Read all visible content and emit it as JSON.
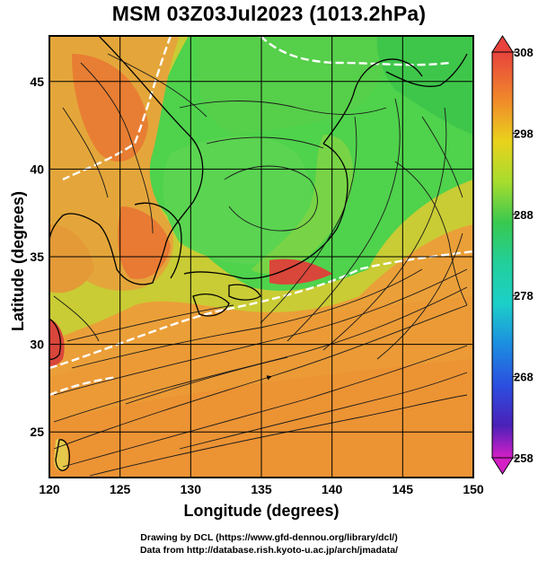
{
  "title": "MSM 03Z03Jul2023 (1013.2hPa)",
  "xlabel": "Longitude (degrees)",
  "ylabel": "Latitude  (degrees)",
  "credits": {
    "line1": "Drawing by DCL (https://www.gfd-dennou.org/library/dcl/)",
    "line2": "Data from http://database.rish.kyoto-u.ac.jp/arch/jmadata/"
  },
  "map": {
    "lon_range": [
      120,
      150
    ],
    "lat_range": [
      22.4,
      47.6
    ],
    "x_ticks": [
      120,
      125,
      130,
      135,
      140,
      145,
      150
    ],
    "y_ticks": [
      25,
      30,
      35,
      40,
      45
    ],
    "grid": true
  },
  "colorbar": {
    "ticks": [
      308,
      298,
      288,
      278,
      268,
      258
    ],
    "range": [
      258,
      308
    ],
    "colors": {
      "max": "#e8433d",
      "hot": "#f08a2a",
      "warm": "#e9d21c",
      "mid": "#39c850",
      "cool": "#1ccfc8",
      "cold": "#2b4fe0",
      "min": "#d41fc6"
    }
  },
  "palette": {
    "sea_orange": "#eb9f38",
    "land_green": "#4fd24c",
    "yellow_green": "#b5dc3a",
    "hot_land": "#e67a33",
    "hottest": "#d9463a",
    "coast": "#000000",
    "isotherm": "#ffffff"
  }
}
